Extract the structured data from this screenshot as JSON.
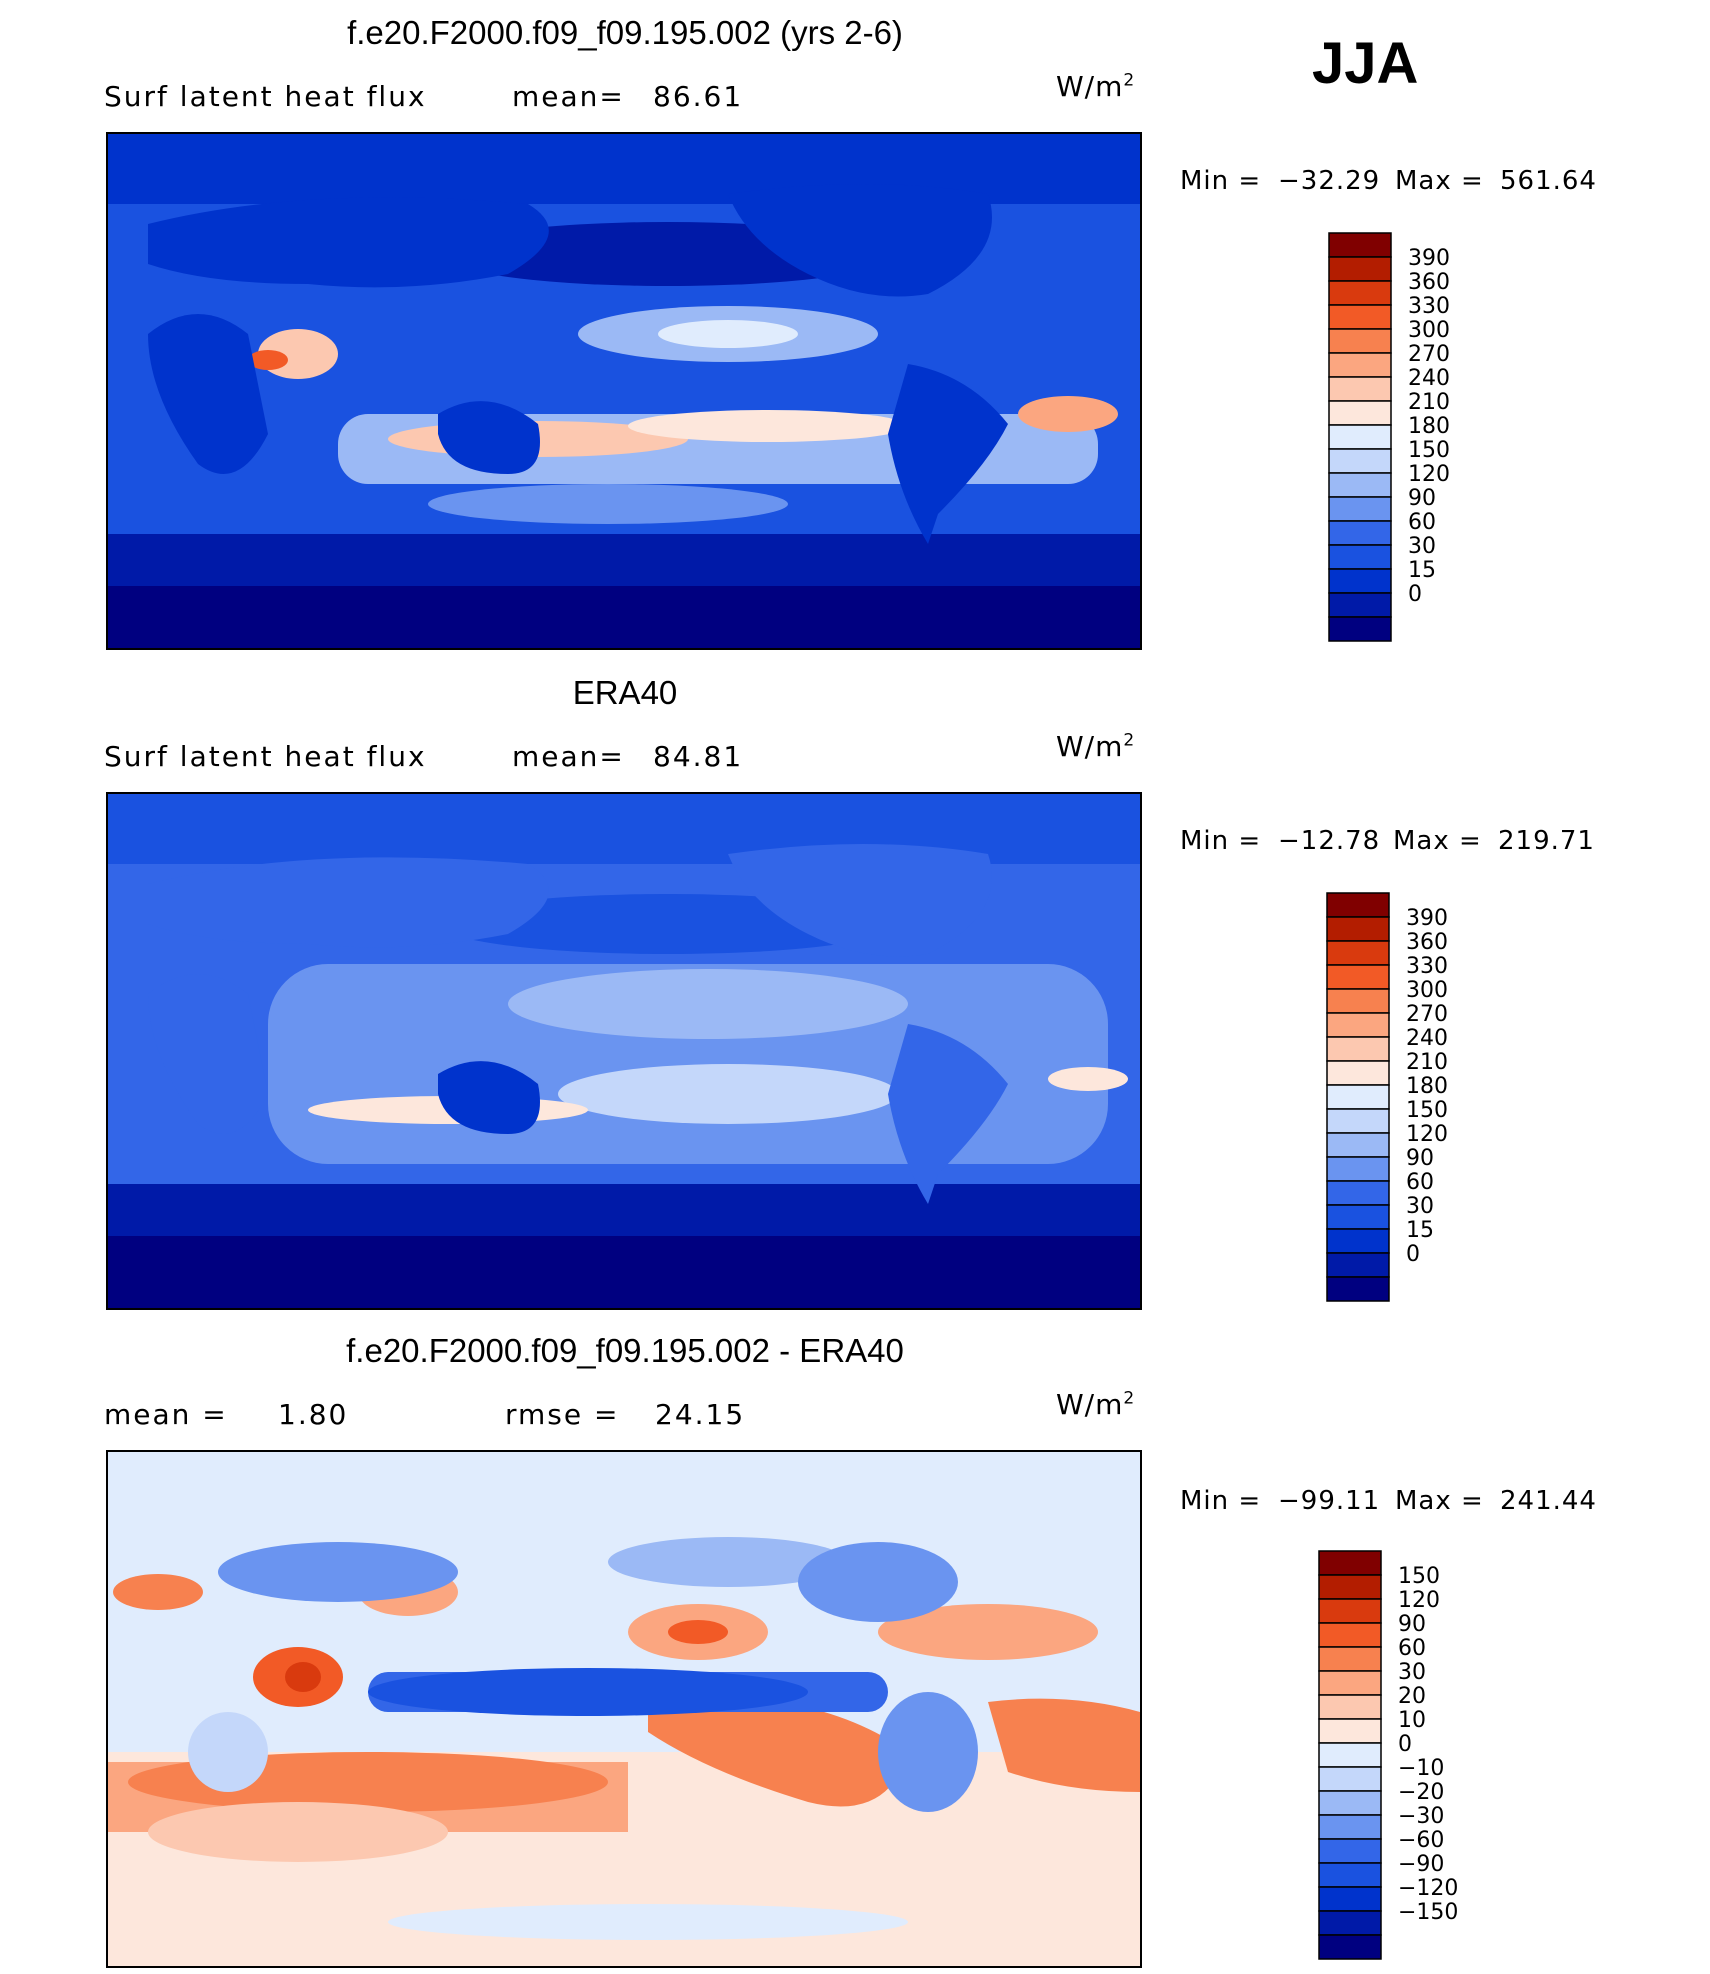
{
  "season": "JJA",
  "units": {
    "base": "W/m",
    "exp": "2"
  },
  "colors": {
    "full": [
      "#000080",
      "#001aa8",
      "#0033cc",
      "#1a52e0",
      "#3366e8",
      "#6a94f0",
      "#9bb9f5",
      "#c4d7fa",
      "#e0ecfd",
      "#fde7dc",
      "#fcc8b0",
      "#fba680",
      "#f7814f",
      "#f25a26",
      "#d93a0e",
      "#b31d00",
      "#800000"
    ],
    "diff": [
      "#000080",
      "#001aa8",
      "#0033cc",
      "#1a52e0",
      "#3366e8",
      "#6a94f0",
      "#9bb9f5",
      "#c4d7fa",
      "#e0ecfd",
      "#fde7dc",
      "#fcc8b0",
      "#fba680",
      "#f7814f",
      "#f25a26",
      "#d93a0e",
      "#b31d00",
      "#800000"
    ]
  },
  "chart_data": [
    {
      "type": "heatmap",
      "title": "f.e20.F2000.f09_f09.195.002 (yrs 2-6)",
      "variable": "Surf  latent  heat  flux",
      "mean_label": "mean=",
      "mean": "86.61",
      "min_label": "Min  =",
      "min": "−32.29",
      "max_label": "Max  =",
      "max": "561.64",
      "colorbar_levels": [
        "390",
        "360",
        "330",
        "300",
        "270",
        "240",
        "210",
        "180",
        "150",
        "120",
        "90",
        "60",
        "30",
        "15",
        "0"
      ]
    },
    {
      "type": "heatmap",
      "title": "ERA40",
      "variable": "Surf  latent  heat  flux",
      "mean_label": "mean=",
      "mean": "84.81",
      "min_label": "Min  =",
      "min": "−12.78",
      "max_label": "Max  =",
      "max": "219.71",
      "colorbar_levels": [
        "390",
        "360",
        "330",
        "300",
        "270",
        "240",
        "210",
        "180",
        "150",
        "120",
        "90",
        "60",
        "30",
        "15",
        "0"
      ]
    },
    {
      "type": "heatmap",
      "title": "f.e20.F2000.f09_f09.195.002 - ERA40",
      "mean_label": "mean  =",
      "mean": "1.80",
      "rmse_label": "rmse  =",
      "rmse": "24.15",
      "min_label": "Min  =",
      "min": "−99.11",
      "max_label": "Max  =",
      "max": "241.44",
      "colorbar_levels": [
        "150",
        "120",
        "90",
        "60",
        "30",
        "20",
        "10",
        "0",
        "−10",
        "−20",
        "−30",
        "−60",
        "−90",
        "−120",
        "−150"
      ]
    }
  ]
}
